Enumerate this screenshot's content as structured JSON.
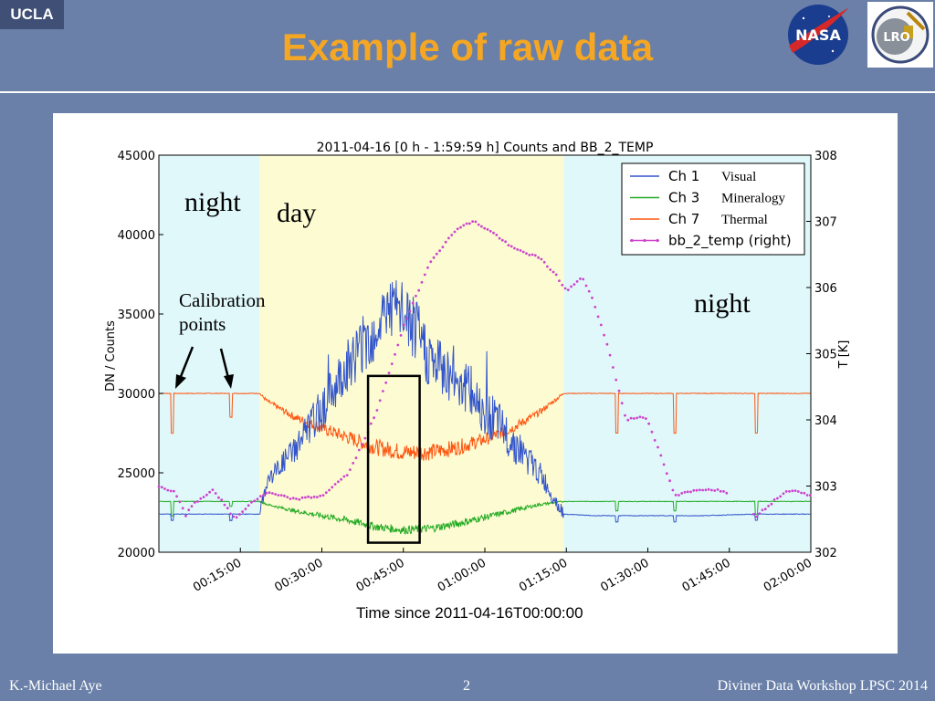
{
  "header": {
    "badge": "UCLA",
    "title": "Example of raw data",
    "logo_nasa": "NASA",
    "logo_lro": "LRO"
  },
  "footer": {
    "left": "K.-Michael Aye",
    "center": "2",
    "right": "Diviner Data Workshop LPSC 2014"
  },
  "annotations": {
    "night_left": "night",
    "day": "day",
    "night_right": "night",
    "calibration_line1": "Calibration",
    "calibration_line2": "points"
  },
  "colors": {
    "ch1": "#3355cc",
    "ch3": "#22aa22",
    "ch7": "#ff5511",
    "bb": "#cc44cc",
    "night_bg": "#e0f8fa",
    "day_bg": "#fdfbd2",
    "title": "#f5a623",
    "slide_bg": "#6a80a8"
  },
  "chart_data": {
    "type": "line",
    "title": "2011-04-16 [0 h - 1:59:59 h] Counts and BB_2_TEMP",
    "xlabel": "Time since 2011-04-16T00:00:00",
    "ylabel": "DN / Counts",
    "ylabel_right": "T [K]",
    "xlim": [
      "00:00:00",
      "02:00:00"
    ],
    "ylim": [
      20000,
      45000
    ],
    "ylim_right": [
      302,
      308
    ],
    "x_ticks": [
      "00:15:00",
      "00:30:00",
      "00:45:00",
      "01:00:00",
      "01:15:00",
      "01:30:00",
      "01:45:00",
      "02:00:00"
    ],
    "y_ticks": [
      20000,
      25000,
      30000,
      35000,
      40000,
      45000
    ],
    "y_ticks_right": [
      302,
      303,
      304,
      305,
      306,
      307,
      308
    ],
    "x_tick_minutes": [
      15,
      30,
      45,
      60,
      75,
      90,
      105,
      120
    ],
    "legend_position": "top-right",
    "legend": [
      {
        "label": "Ch 1",
        "sub": "Visual"
      },
      {
        "label": "Ch 3",
        "sub": "Mineralogy"
      },
      {
        "label": "Ch 7",
        "sub": "Thermal"
      },
      {
        "label": "bb_2_temp (right)",
        "sub": ""
      }
    ],
    "regions": [
      {
        "name": "night",
        "x_minutes": [
          0,
          18.5
        ]
      },
      {
        "name": "day",
        "x_minutes": [
          18.5,
          74.5
        ]
      },
      {
        "name": "night",
        "x_minutes": [
          74.5,
          120
        ]
      }
    ],
    "highlight_box_minutes": [
      38.5,
      48
    ],
    "highlight_box_counts": [
      20600,
      31100
    ],
    "series": [
      {
        "name": "Ch 1",
        "axis": "left",
        "x": [
          0,
          10,
          18.5,
          20,
          25,
          30,
          35,
          40,
          42,
          45,
          48,
          50,
          55,
          60,
          65,
          70,
          74.5,
          80,
          90,
          100,
          110,
          120
        ],
        "y": [
          22400,
          22400,
          22400,
          24500,
          26500,
          29000,
          32000,
          34000,
          35500,
          35000,
          33500,
          32000,
          31000,
          29000,
          27000,
          25000,
          22400,
          22300,
          22300,
          22300,
          22400,
          22400
        ]
      },
      {
        "name": "Ch 3",
        "axis": "left",
        "x": [
          0,
          10,
          18.5,
          20,
          25,
          30,
          35,
          40,
          45,
          50,
          55,
          60,
          65,
          70,
          74.5,
          80,
          90,
          100,
          110,
          120
        ],
        "y": [
          23200,
          23200,
          23200,
          23000,
          22600,
          22300,
          22000,
          21600,
          21400,
          21500,
          21800,
          22200,
          22600,
          23000,
          23200,
          23200,
          23200,
          23200,
          23200,
          23200
        ]
      },
      {
        "name": "Ch 7",
        "axis": "left",
        "x": [
          0,
          10,
          18.5,
          20,
          25,
          30,
          35,
          40,
          45,
          50,
          55,
          60,
          65,
          70,
          74.5,
          80,
          90,
          100,
          110,
          120
        ],
        "y": [
          30000,
          30000,
          30000,
          29500,
          28500,
          27800,
          27200,
          26600,
          26300,
          26300,
          26600,
          27100,
          27800,
          28800,
          30000,
          30000,
          30000,
          30000,
          30000,
          30000
        ]
      },
      {
        "name": "bb_2_temp (right)",
        "axis": "right",
        "x": [
          0,
          3,
          5,
          6,
          10,
          14,
          17,
          20,
          25,
          30,
          35,
          40,
          45,
          50,
          55,
          58,
          60,
          62,
          65,
          70,
          73,
          75,
          78,
          80,
          83,
          86,
          89,
          90,
          95,
          97,
          100,
          102,
          105,
          110,
          115,
          117,
          120
        ],
        "y": [
          303.0,
          302.9,
          302.55,
          302.7,
          302.95,
          302.5,
          302.75,
          302.9,
          302.8,
          302.85,
          303.2,
          304.1,
          305.4,
          306.4,
          306.9,
          307.0,
          306.9,
          306.8,
          306.6,
          306.45,
          306.2,
          305.95,
          306.15,
          305.8,
          305.0,
          304.0,
          304.05,
          304.0,
          302.85,
          302.9,
          302.95,
          302.95,
          302.9,
          302.55,
          302.9,
          302.95,
          302.85
        ]
      }
    ],
    "calibration_points": [
      {
        "x_minute": 2.5,
        "depth": [
          2500,
          900
        ]
      },
      {
        "x_minute": 13.3,
        "depth": [
          1500,
          300
        ]
      },
      {
        "x_minute": 84.3,
        "depth": [
          2500,
          600
        ]
      },
      {
        "x_minute": 95,
        "depth": [
          2500,
          600
        ]
      },
      {
        "x_minute": 110,
        "depth": [
          2500,
          800
        ]
      }
    ]
  }
}
